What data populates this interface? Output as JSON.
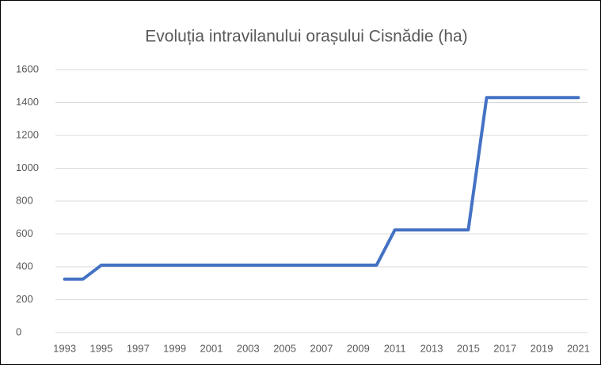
{
  "chart_data": {
    "type": "line",
    "title": "Evoluția intravilanului orașului Cisnădie (ha)",
    "x": [
      1993,
      1994,
      1995,
      1996,
      1997,
      1998,
      1999,
      2000,
      2001,
      2002,
      2003,
      2004,
      2005,
      2006,
      2007,
      2008,
      2009,
      2010,
      2011,
      2012,
      2013,
      2014,
      2015,
      2016,
      2017,
      2018,
      2019,
      2020,
      2021
    ],
    "values": [
      325,
      325,
      410,
      410,
      410,
      410,
      410,
      410,
      410,
      410,
      410,
      410,
      410,
      410,
      410,
      410,
      410,
      410,
      625,
      625,
      625,
      625,
      625,
      1430,
      1430,
      1430,
      1430,
      1430,
      1430
    ],
    "color": "#4472c4",
    "xlim": [
      1992.5,
      2021.5
    ],
    "xticks": [
      1993,
      1995,
      1997,
      1999,
      2001,
      2003,
      2005,
      2007,
      2009,
      2011,
      2013,
      2015,
      2017,
      2019,
      2021
    ],
    "ylim": [
      0,
      1600
    ],
    "yticks": [
      0,
      200,
      400,
      600,
      800,
      1000,
      1200,
      1400,
      1600
    ],
    "grid": true
  }
}
